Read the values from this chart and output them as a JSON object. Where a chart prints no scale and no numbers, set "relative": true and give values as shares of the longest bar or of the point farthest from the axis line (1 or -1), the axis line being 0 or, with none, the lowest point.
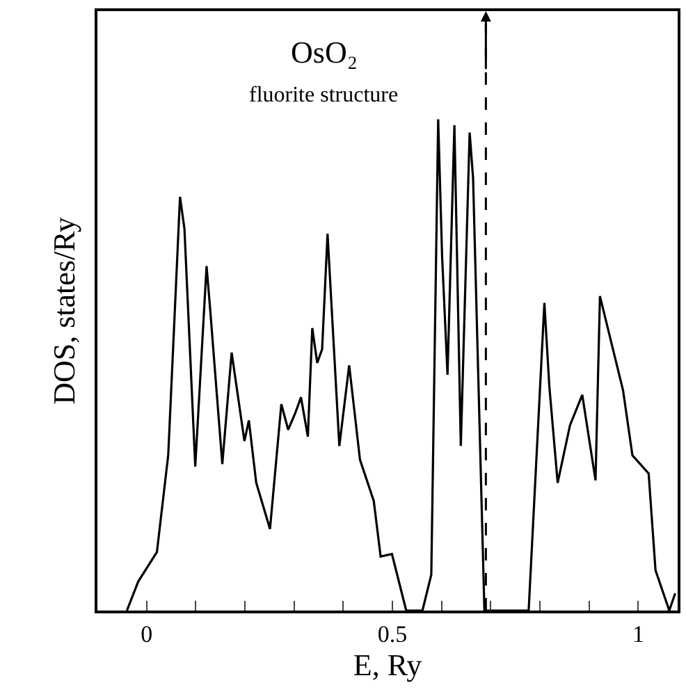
{
  "chart_data": {
    "type": "line",
    "title": "OsO₂",
    "subtitle": "fluorite structure",
    "xlabel": "E, Ry",
    "ylabel": "DOS, states/Ry",
    "relative": true,
    "x": [
      -0.04,
      -0.017,
      0.021,
      0.044,
      0.068,
      0.077,
      0.099,
      0.122,
      0.129,
      0.154,
      0.173,
      0.199,
      0.208,
      0.223,
      0.251,
      0.274,
      0.288,
      0.302,
      0.314,
      0.328,
      0.337,
      0.347,
      0.357,
      0.368,
      0.392,
      0.412,
      0.434,
      0.462,
      0.476,
      0.499,
      0.528,
      0.561,
      0.579,
      0.593,
      0.601,
      0.612,
      0.626,
      0.639,
      0.657,
      0.664,
      0.687,
      0.777,
      0.809,
      0.819,
      0.836,
      0.861,
      0.886,
      0.913,
      0.922,
      0.969,
      0.988,
      1.021,
      1.035,
      1.063,
      1.075
    ],
    "series": [
      {
        "color": "#000000",
        "values": [
          0,
          0.059,
          0.119,
          0.316,
          0.842,
          0.777,
          0.293,
          0.701,
          0.617,
          0.298,
          0.525,
          0.345,
          0.387,
          0.26,
          0.166,
          0.42,
          0.368,
          0.401,
          0.434,
          0.354,
          0.575,
          0.504,
          0.532,
          0.767,
          0.335,
          0.499,
          0.307,
          0.223,
          0.11,
          0.115,
          0,
          0,
          0.073,
          1.0,
          0.72,
          0.48,
          0.988,
          0.335,
          0.973,
          0.88,
          0,
          0,
          0.626,
          0.457,
          0.26,
          0.377,
          0.439,
          0.265,
          0.64,
          0.448,
          0.316,
          0.279,
          0.082,
          0,
          0.035
        ]
      }
    ],
    "xlim": [
      -0.1,
      1.08
    ],
    "xticks": [
      0,
      {
        "value": 0.1,
        "label": null
      },
      {
        "value": 0.2,
        "label": null
      },
      {
        "value": 0.3,
        "label": null
      },
      {
        "value": 0.4,
        "label": null
      },
      0.5,
      {
        "value": 0.6,
        "label": null
      },
      {
        "value": 0.7,
        "label": null
      },
      {
        "value": 0.8,
        "label": null
      },
      {
        "value": 0.9,
        "label": null
      },
      1
    ],
    "ref_lines": [
      {
        "axis": "x",
        "value": 0.69,
        "line_style": "dashed",
        "color": "#000000"
      }
    ],
    "marker": "none",
    "line_style": "solid"
  }
}
